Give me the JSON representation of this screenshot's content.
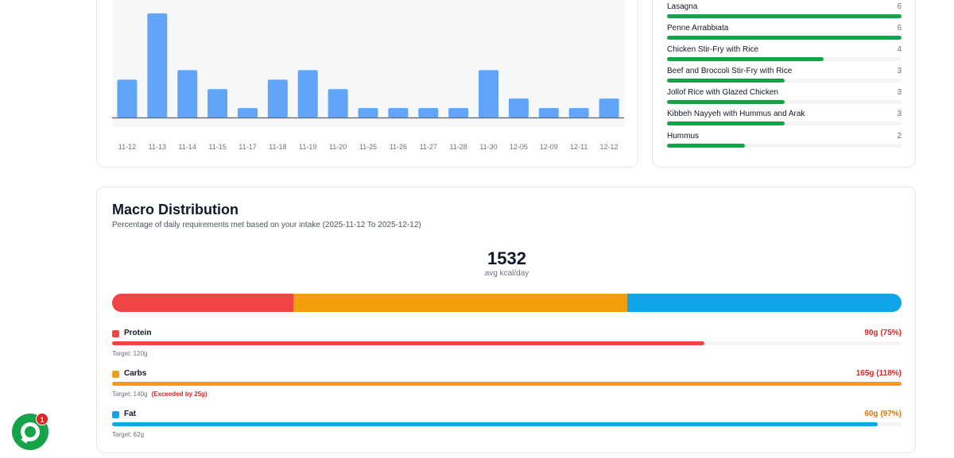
{
  "chart_data": {
    "type": "bar",
    "categories": [
      "11-12",
      "11-13",
      "11-14",
      "11-15",
      "11-17",
      "11-18",
      "11-19",
      "11-20",
      "11-25",
      "11-26",
      "11-27",
      "11-28",
      "11-30",
      "12-05",
      "12-09",
      "12-11",
      "12-12"
    ],
    "values": [
      4,
      11,
      5,
      3,
      1,
      4,
      5,
      3,
      1,
      1,
      1,
      1,
      5,
      2,
      1,
      1,
      2
    ],
    "ylim": [
      0,
      12
    ],
    "bar_color": "#60a5fa"
  },
  "top_dishes": {
    "max": 6,
    "items": [
      {
        "name": "Lasagna",
        "count": "6",
        "value": 6
      },
      {
        "name": "Penne Arrabbiata",
        "count": "6",
        "value": 6
      },
      {
        "name": "Chicken Stir-Fry with Rice",
        "count": "4",
        "value": 4
      },
      {
        "name": "Beef and Broccoli Stir-Fry with Rice",
        "count": "3",
        "value": 3
      },
      {
        "name": "Jollof Rice with Glazed Chicken",
        "count": "3",
        "value": 3
      },
      {
        "name": "Kibbeh Nayyeh with Hummus and Arak",
        "count": "3",
        "value": 3
      },
      {
        "name": "Hummus",
        "count": "2",
        "value": 2
      }
    ]
  },
  "macro": {
    "title": "Macro Distribution",
    "subtitle": "Percentage of daily requirements met based on your intake (2025-11-12 To 2025-12-12)",
    "kcal_value": "1532",
    "kcal_label": "avg kcal/day",
    "distribution": [
      {
        "name": "Protein",
        "share": 23,
        "color": "#ef4444"
      },
      {
        "name": "Carbs",
        "share": 42.3,
        "color": "#f59e0b"
      },
      {
        "name": "Fat",
        "share": 34.7,
        "color": "#0ea5e9"
      }
    ],
    "rows": [
      {
        "name": "Protein",
        "value_text": "90g (75%)",
        "percent": 75,
        "color": "#ef4444",
        "value_color": "#dc2626",
        "target": "Target: 120g",
        "exceeded": ""
      },
      {
        "name": "Carbs",
        "value_text": "165g (118%)",
        "percent": 100,
        "color": "#f59e0b",
        "value_color": "#dc2626",
        "target": "Target: 140g",
        "exceeded": "(Exceeded by 25g)"
      },
      {
        "name": "Fat",
        "value_text": "60g (97%)",
        "percent": 97,
        "color": "#0ea5e9",
        "value_color": "#d97706",
        "target": "Target: 62g",
        "exceeded": ""
      }
    ]
  },
  "chat": {
    "badge": "1",
    "icon": "chat-bubble-icon",
    "color": "#16a34a"
  }
}
